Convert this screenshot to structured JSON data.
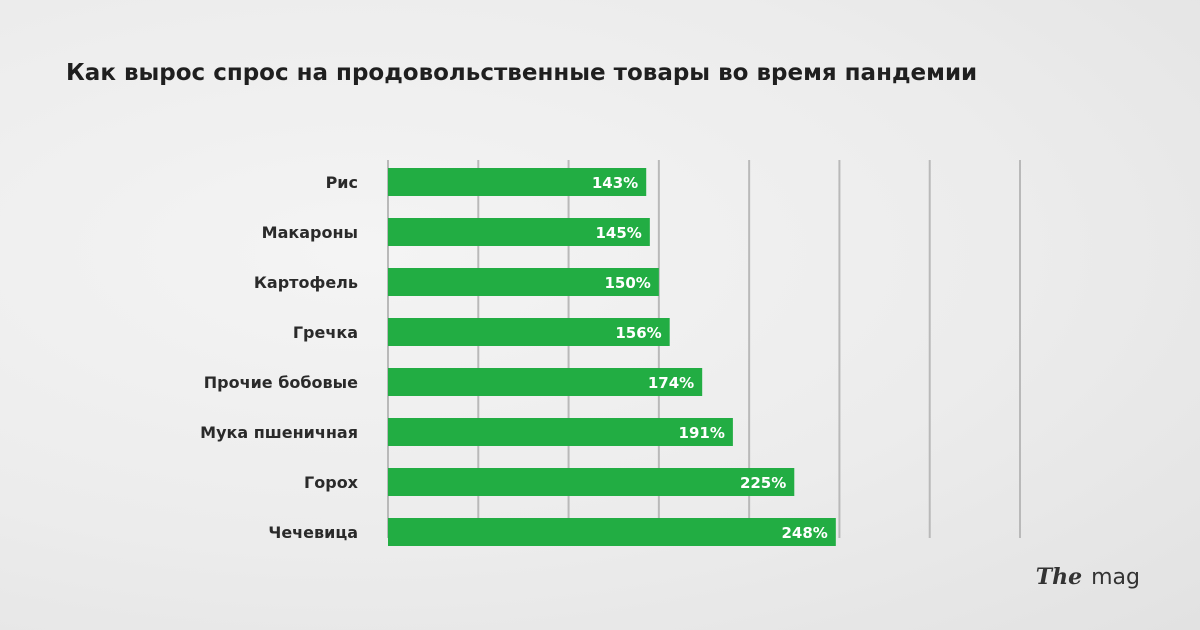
{
  "title": "Как вырос спрос на продовольственные товары во время пандемии",
  "logo": {
    "the": "The",
    "mag": "mag"
  },
  "colors": {
    "bar": "#22ad43",
    "grid": "#b9b9b9",
    "text": "#2a2a2a"
  },
  "chart_data": {
    "type": "bar",
    "orientation": "horizontal",
    "title": "Как вырос спрос на продовольственные товары во время пандемии",
    "categories": [
      "Рис",
      "Макароны",
      "Картофель",
      "Гречка",
      "Прочие бобовые",
      "Мука пшеничная",
      "Горох",
      "Чечевица"
    ],
    "values": [
      143,
      145,
      150,
      156,
      174,
      191,
      225,
      248
    ],
    "value_labels": [
      "143%",
      "145%",
      "150%",
      "156%",
      "174%",
      "191%",
      "225%",
      "248%"
    ],
    "unit": "%",
    "xlim": [
      0,
      350
    ],
    "grid": true,
    "legend": "none"
  }
}
